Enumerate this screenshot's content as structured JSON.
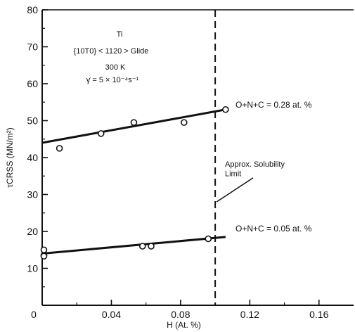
{
  "chart_data": {
    "type": "scatter",
    "xlabel": "H (At. %)",
    "ylabel": "τCRSS (MN/m²)",
    "xlim": [
      0,
      0.18
    ],
    "ylim": [
      0,
      80
    ],
    "xticks": [
      0,
      0.04,
      0.08,
      0.12,
      0.16
    ],
    "xtick_labels": [
      "0",
      "0.04",
      "0.08",
      "0.12",
      "0.16"
    ],
    "yticks": [
      0,
      10,
      20,
      30,
      40,
      50,
      60,
      70,
      80
    ],
    "ytick_labels": [
      "0",
      "10",
      "20",
      "30",
      "40",
      "50",
      "60",
      "70",
      "80"
    ],
    "grid": false,
    "annotation_lines": [
      "Ti",
      "{10T0} < 1120 > Glide",
      "300 K",
      "γ̇ = 5 × 10⁻⁴s⁻¹"
    ],
    "series": [
      {
        "name": "O+N+C = 0.28 at. %",
        "points": [
          [
            0.01,
            42.5
          ],
          [
            0.034,
            46.5
          ],
          [
            0.053,
            49.5
          ],
          [
            0.082,
            49.5
          ],
          [
            0.106,
            53
          ]
        ],
        "fit_line": [
          [
            0,
            44
          ],
          [
            0.106,
            53
          ]
        ]
      },
      {
        "name": "O+N+C = 0.05 at. %",
        "points": [
          [
            0.001,
            13.5
          ],
          [
            0.001,
            13.3
          ],
          [
            0.001,
            15
          ],
          [
            0.058,
            16
          ],
          [
            0.063,
            16
          ],
          [
            0.096,
            18
          ]
        ],
        "fit_line": [
          [
            0,
            14
          ],
          [
            0.106,
            18.5
          ]
        ]
      }
    ],
    "vertical_reference": {
      "x": 0.1,
      "label_lines": [
        "Approx. Solubility",
        "Limit"
      ]
    }
  }
}
